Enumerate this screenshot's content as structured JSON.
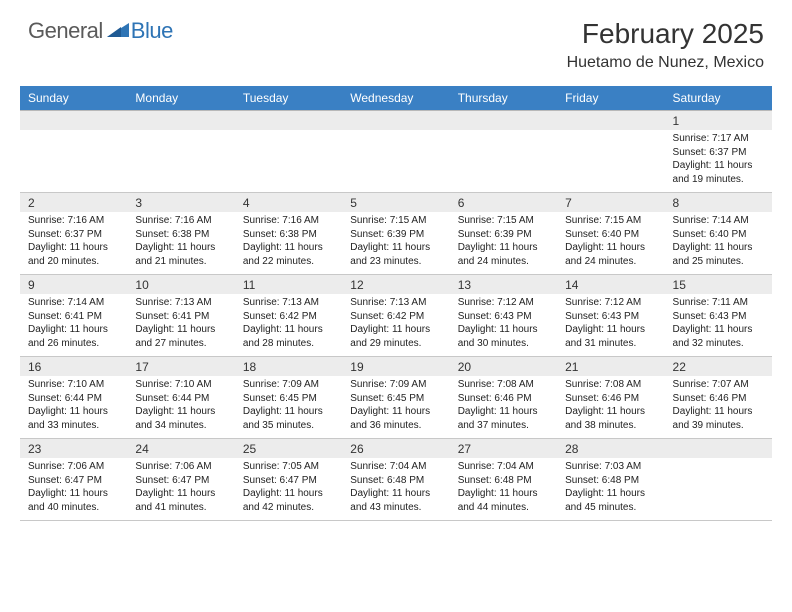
{
  "logo": {
    "text1": "General",
    "text2": "Blue"
  },
  "title": "February 2025",
  "location": "Huetamo de Nunez, Mexico",
  "colors": {
    "header_bg": "#3a80c4",
    "header_text": "#ffffff",
    "daynum_bg": "#ececec",
    "border": "#c8c8c8",
    "logo_gray": "#5a5a5a",
    "logo_blue": "#2e74b5"
  },
  "day_names": [
    "Sunday",
    "Monday",
    "Tuesday",
    "Wednesday",
    "Thursday",
    "Friday",
    "Saturday"
  ],
  "weeks": [
    [
      {
        "n": "",
        "lines": []
      },
      {
        "n": "",
        "lines": []
      },
      {
        "n": "",
        "lines": []
      },
      {
        "n": "",
        "lines": []
      },
      {
        "n": "",
        "lines": []
      },
      {
        "n": "",
        "lines": []
      },
      {
        "n": "1",
        "lines": [
          "Sunrise: 7:17 AM",
          "Sunset: 6:37 PM",
          "Daylight: 11 hours and 19 minutes."
        ]
      }
    ],
    [
      {
        "n": "2",
        "lines": [
          "Sunrise: 7:16 AM",
          "Sunset: 6:37 PM",
          "Daylight: 11 hours and 20 minutes."
        ]
      },
      {
        "n": "3",
        "lines": [
          "Sunrise: 7:16 AM",
          "Sunset: 6:38 PM",
          "Daylight: 11 hours and 21 minutes."
        ]
      },
      {
        "n": "4",
        "lines": [
          "Sunrise: 7:16 AM",
          "Sunset: 6:38 PM",
          "Daylight: 11 hours and 22 minutes."
        ]
      },
      {
        "n": "5",
        "lines": [
          "Sunrise: 7:15 AM",
          "Sunset: 6:39 PM",
          "Daylight: 11 hours and 23 minutes."
        ]
      },
      {
        "n": "6",
        "lines": [
          "Sunrise: 7:15 AM",
          "Sunset: 6:39 PM",
          "Daylight: 11 hours and 24 minutes."
        ]
      },
      {
        "n": "7",
        "lines": [
          "Sunrise: 7:15 AM",
          "Sunset: 6:40 PM",
          "Daylight: 11 hours and 24 minutes."
        ]
      },
      {
        "n": "8",
        "lines": [
          "Sunrise: 7:14 AM",
          "Sunset: 6:40 PM",
          "Daylight: 11 hours and 25 minutes."
        ]
      }
    ],
    [
      {
        "n": "9",
        "lines": [
          "Sunrise: 7:14 AM",
          "Sunset: 6:41 PM",
          "Daylight: 11 hours and 26 minutes."
        ]
      },
      {
        "n": "10",
        "lines": [
          "Sunrise: 7:13 AM",
          "Sunset: 6:41 PM",
          "Daylight: 11 hours and 27 minutes."
        ]
      },
      {
        "n": "11",
        "lines": [
          "Sunrise: 7:13 AM",
          "Sunset: 6:42 PM",
          "Daylight: 11 hours and 28 minutes."
        ]
      },
      {
        "n": "12",
        "lines": [
          "Sunrise: 7:13 AM",
          "Sunset: 6:42 PM",
          "Daylight: 11 hours and 29 minutes."
        ]
      },
      {
        "n": "13",
        "lines": [
          "Sunrise: 7:12 AM",
          "Sunset: 6:43 PM",
          "Daylight: 11 hours and 30 minutes."
        ]
      },
      {
        "n": "14",
        "lines": [
          "Sunrise: 7:12 AM",
          "Sunset: 6:43 PM",
          "Daylight: 11 hours and 31 minutes."
        ]
      },
      {
        "n": "15",
        "lines": [
          "Sunrise: 7:11 AM",
          "Sunset: 6:43 PM",
          "Daylight: 11 hours and 32 minutes."
        ]
      }
    ],
    [
      {
        "n": "16",
        "lines": [
          "Sunrise: 7:10 AM",
          "Sunset: 6:44 PM",
          "Daylight: 11 hours and 33 minutes."
        ]
      },
      {
        "n": "17",
        "lines": [
          "Sunrise: 7:10 AM",
          "Sunset: 6:44 PM",
          "Daylight: 11 hours and 34 minutes."
        ]
      },
      {
        "n": "18",
        "lines": [
          "Sunrise: 7:09 AM",
          "Sunset: 6:45 PM",
          "Daylight: 11 hours and 35 minutes."
        ]
      },
      {
        "n": "19",
        "lines": [
          "Sunrise: 7:09 AM",
          "Sunset: 6:45 PM",
          "Daylight: 11 hours and 36 minutes."
        ]
      },
      {
        "n": "20",
        "lines": [
          "Sunrise: 7:08 AM",
          "Sunset: 6:46 PM",
          "Daylight: 11 hours and 37 minutes."
        ]
      },
      {
        "n": "21",
        "lines": [
          "Sunrise: 7:08 AM",
          "Sunset: 6:46 PM",
          "Daylight: 11 hours and 38 minutes."
        ]
      },
      {
        "n": "22",
        "lines": [
          "Sunrise: 7:07 AM",
          "Sunset: 6:46 PM",
          "Daylight: 11 hours and 39 minutes."
        ]
      }
    ],
    [
      {
        "n": "23",
        "lines": [
          "Sunrise: 7:06 AM",
          "Sunset: 6:47 PM",
          "Daylight: 11 hours and 40 minutes."
        ]
      },
      {
        "n": "24",
        "lines": [
          "Sunrise: 7:06 AM",
          "Sunset: 6:47 PM",
          "Daylight: 11 hours and 41 minutes."
        ]
      },
      {
        "n": "25",
        "lines": [
          "Sunrise: 7:05 AM",
          "Sunset: 6:47 PM",
          "Daylight: 11 hours and 42 minutes."
        ]
      },
      {
        "n": "26",
        "lines": [
          "Sunrise: 7:04 AM",
          "Sunset: 6:48 PM",
          "Daylight: 11 hours and 43 minutes."
        ]
      },
      {
        "n": "27",
        "lines": [
          "Sunrise: 7:04 AM",
          "Sunset: 6:48 PM",
          "Daylight: 11 hours and 44 minutes."
        ]
      },
      {
        "n": "28",
        "lines": [
          "Sunrise: 7:03 AM",
          "Sunset: 6:48 PM",
          "Daylight: 11 hours and 45 minutes."
        ]
      },
      {
        "n": "",
        "lines": []
      }
    ]
  ]
}
